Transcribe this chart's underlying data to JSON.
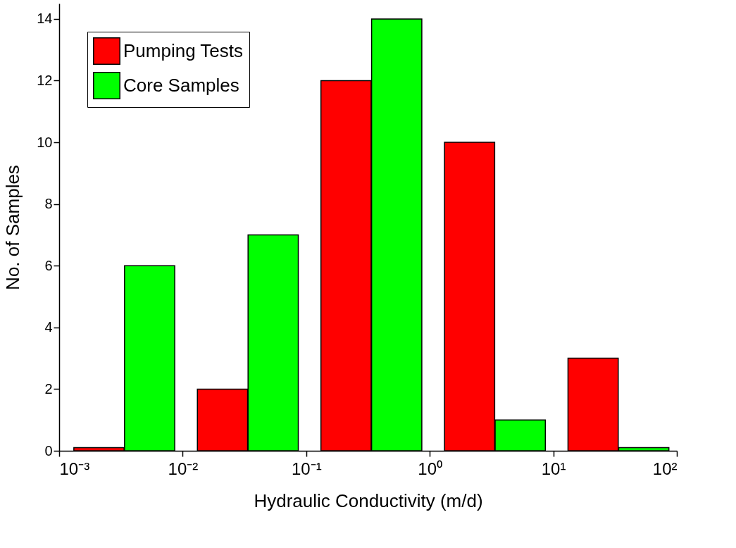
{
  "chart_data": {
    "type": "bar",
    "xlabel": "Hydraulic Conductivity (m/d)",
    "ylabel": "No. of Samples",
    "log": "x",
    "xlim": [
      0.001,
      100
    ],
    "xticks": [
      {
        "value": 0.001,
        "label": "10⁻³"
      },
      {
        "value": 0.01,
        "label": "10⁻²"
      },
      {
        "value": 0.1,
        "label": "10⁻¹"
      },
      {
        "value": 1,
        "label": "10⁰"
      },
      {
        "value": 10,
        "label": "10¹"
      },
      {
        "value": 100,
        "label": "10²"
      }
    ],
    "ylim": [
      0,
      14.5
    ],
    "yticks": [
      0,
      2,
      4,
      6,
      8,
      10,
      12,
      14
    ],
    "grid": false,
    "legend": "top left",
    "series": [
      {
        "name": "Pumping Tests",
        "color": "#ff0000",
        "x": [
          0.0021,
          0.021,
          0.21,
          2.1,
          21
        ],
        "values": [
          0.1,
          2,
          12,
          10,
          3
        ]
      },
      {
        "name": "Core Samples",
        "color": "#00ff00",
        "x": [
          0.0054,
          0.054,
          0.54,
          5.4,
          54
        ],
        "values": [
          6,
          7,
          14,
          1,
          0.1
        ]
      }
    ]
  }
}
